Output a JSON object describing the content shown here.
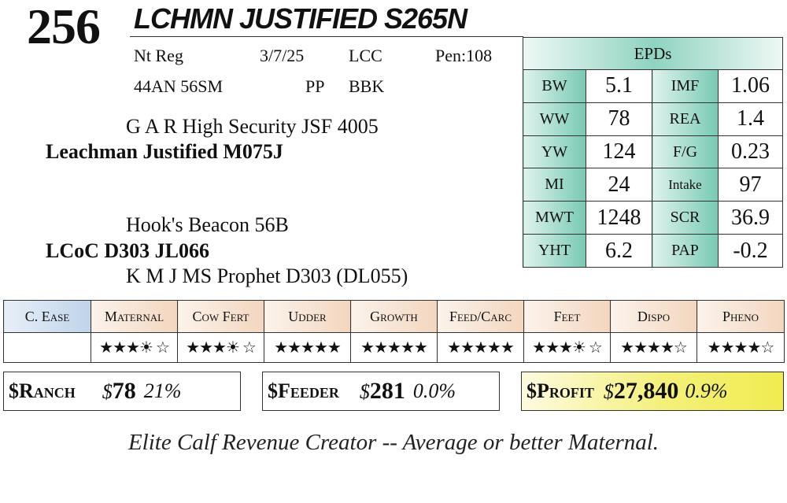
{
  "lot": "256",
  "name": "LCHMN JUSTIFIED S265N",
  "info": {
    "reg": "Nt Reg",
    "date": "3/7/25",
    "breeder": "LCC",
    "pen": "Pen:108",
    "tag": "44AN 56SM",
    "polled": "PP",
    "color": "BBK"
  },
  "pedigree": {
    "sire_sire": "G A R High Security JSF 4005",
    "sire": "Leachman Justified M075J",
    "dam_sire": "Hook's Beacon 56B",
    "dam": "LCoC D303 JL066",
    "dam_dam": "K M J MS Prophet D303 (DL055)"
  },
  "epds": {
    "title": "EPDs",
    "rows": [
      {
        "l1": "BW",
        "v1": "5.1",
        "l2": "IMF",
        "v2": "1.06"
      },
      {
        "l1": "WW",
        "v1": "78",
        "l2": "REA",
        "v2": "1.4"
      },
      {
        "l1": "YW",
        "v1": "124",
        "l2": "F/G",
        "v2": "0.23"
      },
      {
        "l1": "MI",
        "v1": "24",
        "l2": "Intake",
        "v2": "97"
      },
      {
        "l1": "MWT",
        "v1": "1248",
        "l2": "SCR",
        "v2": "36.9"
      },
      {
        "l1": "YHT",
        "v1": "6.2",
        "l2": "PAP",
        "v2": "-0.2"
      }
    ]
  },
  "traits": [
    {
      "label": "C. Ease",
      "stars": ""
    },
    {
      "label": "Maternal",
      "stars": "★★★☀ ☆"
    },
    {
      "label": "Cow Fert",
      "stars": "★★★☀ ☆"
    },
    {
      "label": "Udder",
      "stars": "★★★★★"
    },
    {
      "label": "Growth",
      "stars": "★★★★★"
    },
    {
      "label": "Feed/Carc",
      "stars": "★★★★★"
    },
    {
      "label": "Feet",
      "stars": "★★★☀ ☆"
    },
    {
      "label": "Dispo",
      "stars": "★★★★☆"
    },
    {
      "label": "Pheno",
      "stars": "★★★★☆"
    }
  ],
  "indexes": {
    "ranch": {
      "label": "$Ranch",
      "dollar": "$",
      "value": "78",
      "pct": "21%"
    },
    "feeder": {
      "label": "$Feeder",
      "dollar": "$",
      "value": "281",
      "pct": "0.0%"
    },
    "profit": {
      "label": "$Profit",
      "dollar": "$",
      "value": "27,840",
      "pct": "0.9%"
    }
  },
  "tagline": "Elite Calf Revenue Creator -- Average or better Maternal."
}
